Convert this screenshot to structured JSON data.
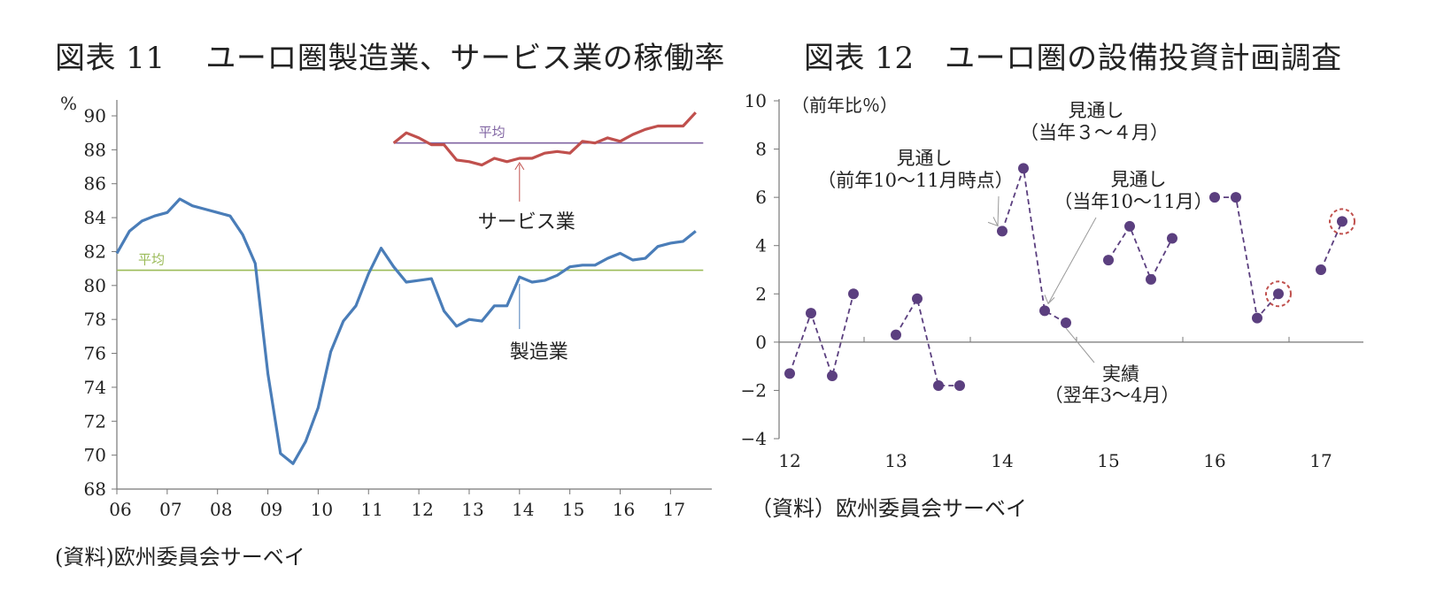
{
  "chart_data": [
    {
      "type": "line",
      "title": "図表 11　 ユーロ圏製造業、サービス業の稼働率",
      "unit_label": "%",
      "ylim": [
        68,
        90
      ],
      "y_ticks": [
        68,
        70,
        72,
        74,
        76,
        78,
        80,
        82,
        84,
        86,
        88,
        90
      ],
      "x_ticks": [
        "06",
        "07",
        "08",
        "09",
        "10",
        "11",
        "12",
        "13",
        "14",
        "15",
        "16",
        "17"
      ],
      "x_range": [
        2006.0,
        2017.75
      ],
      "grid": false,
      "series": [
        {
          "name": "製造業",
          "color": "#4a7db8",
          "x": [
            2006.0,
            2006.25,
            2006.5,
            2006.75,
            2007.0,
            2007.25,
            2007.5,
            2007.75,
            2008.0,
            2008.25,
            2008.5,
            2008.75,
            2009.0,
            2009.25,
            2009.5,
            2009.75,
            2010.0,
            2010.25,
            2010.5,
            2010.75,
            2011.0,
            2011.25,
            2011.5,
            2011.75,
            2012.0,
            2012.25,
            2012.5,
            2012.75,
            2013.0,
            2013.25,
            2013.5,
            2013.75,
            2014.0,
            2014.25,
            2014.5,
            2014.75,
            2015.0,
            2015.25,
            2015.5,
            2015.75,
            2016.0,
            2016.25,
            2016.5,
            2016.75,
            2017.0,
            2017.25,
            2017.5
          ],
          "values": [
            81.9,
            83.2,
            83.8,
            84.1,
            84.3,
            85.1,
            84.7,
            84.5,
            84.3,
            84.1,
            83.0,
            81.3,
            74.8,
            70.1,
            69.5,
            70.8,
            72.8,
            76.1,
            77.9,
            78.8,
            80.7,
            82.2,
            81.1,
            80.2,
            80.3,
            80.4,
            78.5,
            77.6,
            78.0,
            77.9,
            78.8,
            78.8,
            80.5,
            80.2,
            80.3,
            80.6,
            81.1,
            81.2,
            81.2,
            81.6,
            81.9,
            81.5,
            81.6,
            82.3,
            82.5,
            82.6,
            83.2
          ]
        },
        {
          "name": "サービス業",
          "color": "#c0504d",
          "x": [
            2011.5,
            2011.75,
            2012.0,
            2012.25,
            2012.5,
            2012.75,
            2013.0,
            2013.25,
            2013.5,
            2013.75,
            2014.0,
            2014.25,
            2014.5,
            2014.75,
            2015.0,
            2015.25,
            2015.5,
            2015.75,
            2016.0,
            2016.25,
            2016.5,
            2016.75,
            2017.0,
            2017.25,
            2017.5
          ],
          "values": [
            88.4,
            89.0,
            88.7,
            88.3,
            88.3,
            87.4,
            87.3,
            87.1,
            87.5,
            87.3,
            87.5,
            87.5,
            87.8,
            87.9,
            87.8,
            88.5,
            88.4,
            88.7,
            88.5,
            88.9,
            89.2,
            89.4,
            89.4,
            89.4,
            90.2
          ]
        }
      ],
      "reference_lines": [
        {
          "label": "平均",
          "value": 80.9,
          "color": "#9bbb59",
          "x_start": 2006.0,
          "x_end": 2017.65
        },
        {
          "label": "平均",
          "value": 88.4,
          "color": "#8064a2",
          "x_start": 2011.5,
          "x_end": 2017.65
        }
      ],
      "annotations": [
        {
          "text": "サービス業",
          "series": "サービス業"
        },
        {
          "text": "製造業",
          "series": "製造業"
        }
      ]
    },
    {
      "type": "scatter",
      "title": "図表 12　ユーロ圏の設備投資計画調査",
      "unit_label": "（前年比％）",
      "ylim": [
        -4,
        10
      ],
      "y_ticks": [
        -4,
        -2,
        0,
        2,
        4,
        6,
        8,
        10
      ],
      "y_tick_labels": [
        "−4",
        "−2",
        "0",
        "2",
        "4",
        "6",
        "8",
        "10"
      ],
      "x_ticks": [
        "12",
        "13",
        "14",
        "15",
        "16",
        "17"
      ],
      "x_range": [
        2011.9,
        2017.4
      ],
      "grid": false,
      "point_color": "#5b3f7f",
      "groups": [
        {
          "x": [
            2012.0,
            2012.2,
            2012.4,
            2012.6
          ],
          "values": [
            -1.3,
            1.2,
            -1.4,
            2.0
          ]
        },
        {
          "x": [
            2013.0,
            2013.2,
            2013.4,
            2013.6
          ],
          "values": [
            0.3,
            1.8,
            -1.8,
            -1.8
          ]
        },
        {
          "x": [
            2014.0,
            2014.2,
            2014.4,
            2014.6
          ],
          "values": [
            4.6,
            7.2,
            1.3,
            0.8
          ]
        },
        {
          "x": [
            2015.0,
            2015.2,
            2015.4,
            2015.6
          ],
          "values": [
            3.4,
            4.8,
            2.6,
            4.3
          ]
        },
        {
          "x": [
            2016.0,
            2016.2,
            2016.4,
            2016.6
          ],
          "values": [
            6.0,
            6.0,
            1.0,
            2.0
          ]
        },
        {
          "x": [
            2017.0,
            2017.2
          ],
          "values": [
            3.0,
            5.0
          ]
        }
      ],
      "highlighted_points": [
        {
          "x": 2016.6,
          "value": 2.0
        },
        {
          "x": 2017.2,
          "value": 5.0
        }
      ],
      "annotations": [
        {
          "lines": [
            "見通し",
            "（当年３～４月）"
          ],
          "target_x": 2014.2,
          "target_value": 7.2
        },
        {
          "lines": [
            "見通し",
            "（前年10～11月時点）"
          ],
          "target_x": 2014.0,
          "target_value": 4.6
        },
        {
          "lines": [
            "見通し",
            "（当年10～11月）"
          ],
          "target_x": 2014.4,
          "target_value": 1.3
        },
        {
          "lines": [
            "実績",
            "（翌年3～4月）"
          ],
          "target_x": 2014.6,
          "target_value": 0.8
        }
      ]
    }
  ],
  "sources": {
    "left": "(資料)欧州委員会サーベイ",
    "right": "（資料）欧州委員会サーベイ"
  }
}
